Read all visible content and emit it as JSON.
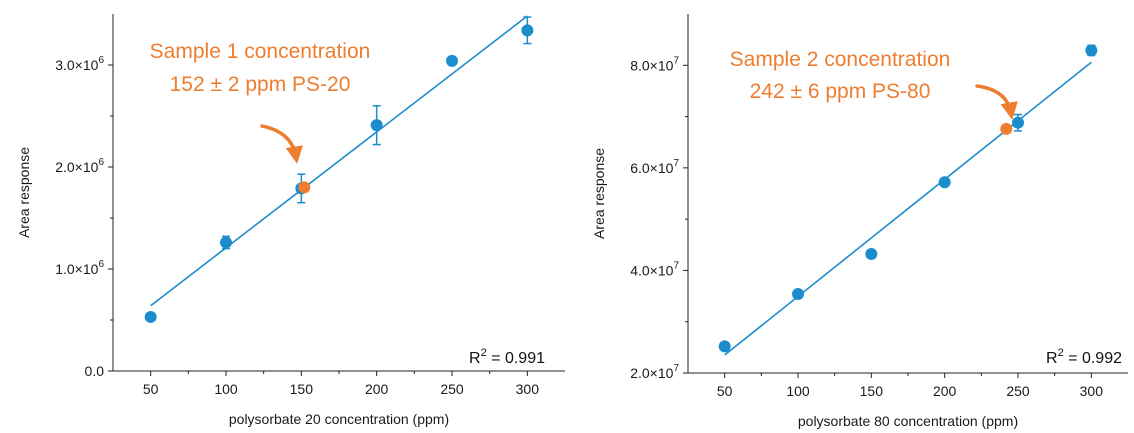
{
  "colors": {
    "series": "#1b8ccc",
    "sample": "#ee7d2f",
    "axis": "#222222",
    "text": "#1a1a1a"
  },
  "chart_data": [
    {
      "type": "scatter",
      "xlabel": "polysorbate 20 concentration (ppm)",
      "ylabel": "Area response",
      "xlim": [
        25,
        325
      ],
      "ylim": [
        0,
        3500000
      ],
      "xticks": [
        50,
        100,
        150,
        200,
        250,
        300
      ],
      "xtick_labels": [
        "50",
        "100",
        "150",
        "200",
        "250",
        "300"
      ],
      "yticks": [
        0,
        1000000,
        2000000,
        3000000
      ],
      "ytick_labels": [
        {
          "base": "0.0",
          "exp": ""
        },
        {
          "base": "1.0×10",
          "exp": "6"
        },
        {
          "base": "2.0×10",
          "exp": "6"
        },
        {
          "base": "3.0×10",
          "exp": "6"
        }
      ],
      "series": [
        {
          "x": [
            50,
            100,
            150,
            200,
            250,
            300
          ],
          "y": [
            530000,
            1260000,
            1790000,
            2410000,
            3040000,
            3340000
          ],
          "yerr": [
            0,
            60000,
            140000,
            190000,
            0,
            130000
          ]
        }
      ],
      "fit_line": {
        "x": [
          50,
          300
        ],
        "y": [
          640000,
          3480000
        ]
      },
      "sample_point": {
        "x": 152,
        "y": 1800000
      },
      "annotation": {
        "lines": [
          "Sample 1 concentration",
          "152 ± 2 ppm PS-20"
        ]
      },
      "r2": {
        "prefix": "R",
        "sup": "2",
        "value": " = 0.991"
      },
      "grid": false
    },
    {
      "type": "scatter",
      "xlabel": "polysorbate 80 concentration (ppm)",
      "ylabel": "Area response",
      "xlim": [
        25,
        325
      ],
      "ylim": [
        20000000,
        90000000
      ],
      "xticks": [
        50,
        100,
        150,
        200,
        250,
        300
      ],
      "xtick_labels": [
        "50",
        "100",
        "150",
        "200",
        "250",
        "300"
      ],
      "yticks": [
        20000000,
        40000000,
        60000000,
        80000000
      ],
      "ytick_labels": [
        {
          "base": "2.0×10",
          "exp": "7"
        },
        {
          "base": "4.0×10",
          "exp": "7"
        },
        {
          "base": "6.0×10",
          "exp": "7"
        },
        {
          "base": "8.0×10",
          "exp": "7"
        }
      ],
      "series": [
        {
          "x": [
            50,
            100,
            150,
            200,
            250,
            300
          ],
          "y": [
            25200000,
            35400000,
            43200000,
            57200000,
            68800000,
            82900000
          ],
          "yerr": [
            0,
            0,
            0,
            0,
            1600000,
            1000000
          ]
        }
      ],
      "fit_line": {
        "x": [
          50,
          300
        ],
        "y": [
          23500000,
          80600000
        ]
      },
      "sample_point": {
        "x": 242,
        "y": 67600000
      },
      "annotation": {
        "lines": [
          "Sample 2 concentration",
          "242 ± 6 ppm PS-80"
        ]
      },
      "r2": {
        "prefix": "R",
        "sup": "2",
        "value": " = 0.992"
      },
      "grid": false
    }
  ]
}
